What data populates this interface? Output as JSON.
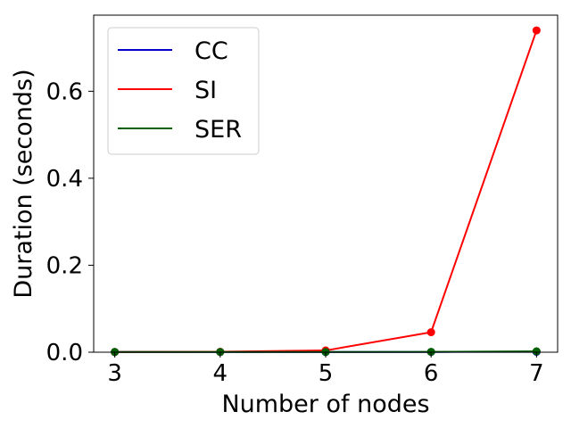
{
  "chart_data": {
    "type": "line",
    "title": "",
    "xlabel": "Number of nodes",
    "ylabel": "Duration (seconds)",
    "x": [
      3,
      4,
      5,
      6,
      7
    ],
    "xlim": [
      2.8,
      7.2
    ],
    "ylim": [
      0,
      0.775
    ],
    "xticks": [
      "3",
      "4",
      "5",
      "6",
      "7"
    ],
    "xtick_values": [
      3,
      4,
      5,
      6,
      7
    ],
    "yticks": [
      "0.0",
      "0.2",
      "0.4",
      "0.6"
    ],
    "ytick_values": [
      0.0,
      0.2,
      0.4,
      0.6
    ],
    "grid": false,
    "legend_position": "top-left",
    "series": [
      {
        "name": "CC",
        "color": "#0000cc",
        "values": [
          0.0005,
          0.0005,
          0.0005,
          0.0006,
          0.0008
        ]
      },
      {
        "name": "SI",
        "color": "#ff0000",
        "values": [
          0.0005,
          0.001,
          0.004,
          0.046,
          0.74
        ]
      },
      {
        "name": "SER",
        "color": "#005f00",
        "values": [
          0.0005,
          0.0006,
          0.0006,
          0.0008,
          0.002
        ]
      }
    ]
  }
}
